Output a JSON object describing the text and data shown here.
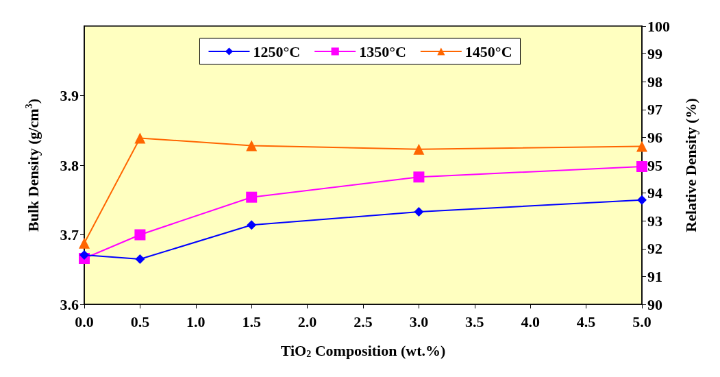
{
  "chart_data": {
    "type": "line",
    "xlabel": "TiO$_{2}$ Composition (wt.%)",
    "ylabel": "Bulk Density (g/cm$^{3}$)",
    "y2label": "Relative Density (%)",
    "x": [
      0,
      0.5,
      1.5,
      3.0,
      5.0
    ],
    "xlim": [
      0,
      5
    ],
    "xticks": [
      {
        "value": 0,
        "label": "0.0"
      },
      {
        "value": 0.5,
        "label": "0.5"
      },
      {
        "value": 1,
        "label": "1.0"
      },
      {
        "value": 1.5,
        "label": "1.5"
      },
      {
        "value": 2,
        "label": "2.0"
      },
      {
        "value": 2.5,
        "label": "2.5"
      },
      {
        "value": 3,
        "label": "3.0"
      },
      {
        "value": 3.5,
        "label": "3.5"
      },
      {
        "value": 4,
        "label": "4.0"
      },
      {
        "value": 4.5,
        "label": "4.5"
      },
      {
        "value": 5,
        "label": "5.0"
      }
    ],
    "ylim": [
      3.6,
      4.0
    ],
    "yticks": [
      3.6,
      3.7,
      3.8,
      3.9
    ],
    "y2lim": [
      90,
      100
    ],
    "y2ticks": [
      90,
      91,
      92,
      93,
      94,
      95,
      96,
      97,
      98,
      99,
      100
    ],
    "grid": false,
    "legend": "top",
    "series": [
      {
        "name": "1250°C",
        "color": "#0000ff",
        "marker": "diamond",
        "values": [
          3.671,
          3.665,
          3.714,
          3.733,
          3.75
        ]
      },
      {
        "name": "1350°C",
        "color": "#ff00ff",
        "marker": "square",
        "values": [
          3.666,
          3.7,
          3.754,
          3.783,
          3.798
        ]
      },
      {
        "name": "1450°C",
        "color": "#ff6600",
        "marker": "triangle",
        "values": [
          3.688,
          3.839,
          3.828,
          3.823,
          3.827
        ]
      }
    ]
  }
}
